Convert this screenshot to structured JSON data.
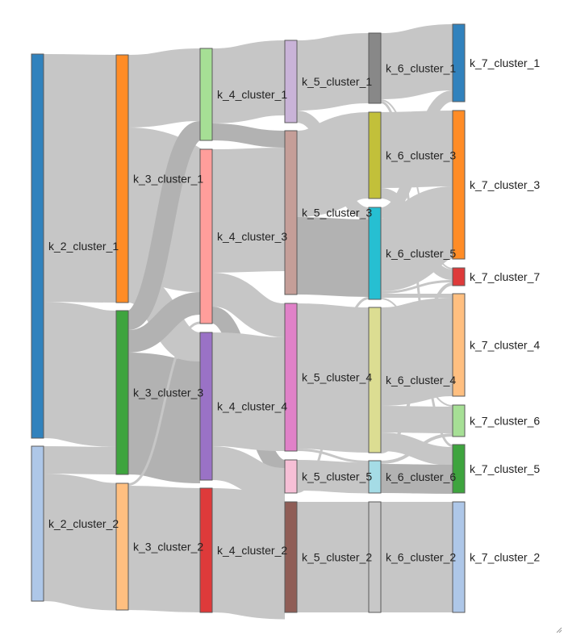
{
  "diagram": {
    "type": "sankey",
    "nodes": [
      {
        "id": "k_2_cluster_1",
        "label": "k_2_cluster_1",
        "color": "#3182bd"
      },
      {
        "id": "k_2_cluster_2",
        "label": "k_2_cluster_2",
        "color": "#aec7e8"
      },
      {
        "id": "k_3_cluster_1",
        "label": "k_3_cluster_1",
        "color": "#ff8c26"
      },
      {
        "id": "k_3_cluster_3",
        "label": "k_3_cluster_3",
        "color": "#3ea43e"
      },
      {
        "id": "k_3_cluster_2",
        "label": "k_3_cluster_2",
        "color": "#ffbf80"
      },
      {
        "id": "k_4_cluster_1",
        "label": "k_4_cluster_1",
        "color": "#a6df95"
      },
      {
        "id": "k_4_cluster_3",
        "label": "k_4_cluster_3",
        "color": "#ff9e9b"
      },
      {
        "id": "k_4_cluster_4",
        "label": "k_4_cluster_4",
        "color": "#9a72c6"
      },
      {
        "id": "k_4_cluster_2",
        "label": "k_4_cluster_2",
        "color": "#de3a3a"
      },
      {
        "id": "k_5_cluster_1",
        "label": "k_5_cluster_1",
        "color": "#c9b3d8"
      },
      {
        "id": "k_5_cluster_3",
        "label": "k_5_cluster_3",
        "color": "#c59e98"
      },
      {
        "id": "k_5_cluster_4",
        "label": "k_5_cluster_4",
        "color": "#e081c8"
      },
      {
        "id": "k_5_cluster_5",
        "label": "k_5_cluster_5",
        "color": "#f6bfd6"
      },
      {
        "id": "k_5_cluster_2",
        "label": "k_5_cluster_2",
        "color": "#8f5d56"
      },
      {
        "id": "k_6_cluster_1",
        "label": "k_6_cluster_1",
        "color": "#888888"
      },
      {
        "id": "k_6_cluster_3",
        "label": "k_6_cluster_3",
        "color": "#c2c03a"
      },
      {
        "id": "k_6_cluster_5",
        "label": "k_6_cluster_5",
        "color": "#26bfd2"
      },
      {
        "id": "k_6_cluster_4",
        "label": "k_6_cluster_4",
        "color": "#dcdd92"
      },
      {
        "id": "k_6_cluster_6",
        "label": "k_6_cluster_6",
        "color": "#a5dce6"
      },
      {
        "id": "k_6_cluster_2",
        "label": "k_6_cluster_2",
        "color": "#c8c8c8"
      },
      {
        "id": "k_7_cluster_1",
        "label": "k_7_cluster_1",
        "color": "#3182bd"
      },
      {
        "id": "k_7_cluster_3",
        "label": "k_7_cluster_3",
        "color": "#ff8c26"
      },
      {
        "id": "k_7_cluster_7",
        "label": "k_7_cluster_7",
        "color": "#de3a3a"
      },
      {
        "id": "k_7_cluster_4",
        "label": "k_7_cluster_4",
        "color": "#ffbf80"
      },
      {
        "id": "k_7_cluster_6",
        "label": "k_7_cluster_6",
        "color": "#a6df95"
      },
      {
        "id": "k_7_cluster_5",
        "label": "k_7_cluster_5",
        "color": "#3ea43e"
      },
      {
        "id": "k_7_cluster_2",
        "label": "k_7_cluster_2",
        "color": "#aec7e8"
      }
    ],
    "links": [
      {
        "source": "k_2_cluster_1",
        "target": "k_3_cluster_1"
      },
      {
        "source": "k_2_cluster_1",
        "target": "k_3_cluster_3"
      },
      {
        "source": "k_2_cluster_2",
        "target": "k_3_cluster_3"
      },
      {
        "source": "k_2_cluster_2",
        "target": "k_3_cluster_2"
      },
      {
        "source": "k_3_cluster_1",
        "target": "k_4_cluster_1"
      },
      {
        "source": "k_3_cluster_1",
        "target": "k_4_cluster_3"
      },
      {
        "source": "k_3_cluster_1",
        "target": "k_4_cluster_4"
      },
      {
        "source": "k_3_cluster_3",
        "target": "k_4_cluster_1"
      },
      {
        "source": "k_3_cluster_3",
        "target": "k_4_cluster_3"
      },
      {
        "source": "k_3_cluster_3",
        "target": "k_4_cluster_4"
      },
      {
        "source": "k_3_cluster_2",
        "target": "k_4_cluster_3"
      },
      {
        "source": "k_3_cluster_2",
        "target": "k_4_cluster_2"
      },
      {
        "source": "k_4_cluster_1",
        "target": "k_5_cluster_1"
      },
      {
        "source": "k_4_cluster_1",
        "target": "k_5_cluster_3"
      },
      {
        "source": "k_4_cluster_3",
        "target": "k_5_cluster_3"
      },
      {
        "source": "k_4_cluster_3",
        "target": "k_5_cluster_4"
      },
      {
        "source": "k_4_cluster_3",
        "target": "k_5_cluster_5"
      },
      {
        "source": "k_4_cluster_4",
        "target": "k_5_cluster_4"
      },
      {
        "source": "k_4_cluster_4",
        "target": "k_5_cluster_5"
      },
      {
        "source": "k_4_cluster_2",
        "target": "k_5_cluster_2"
      },
      {
        "source": "k_5_cluster_1",
        "target": "k_6_cluster_1"
      },
      {
        "source": "k_5_cluster_1",
        "target": "k_6_cluster_5"
      },
      {
        "source": "k_5_cluster_3",
        "target": "k_6_cluster_3"
      },
      {
        "source": "k_5_cluster_3",
        "target": "k_6_cluster_5"
      },
      {
        "source": "k_5_cluster_4",
        "target": "k_6_cluster_4"
      },
      {
        "source": "k_5_cluster_4",
        "target": "k_6_cluster_6"
      },
      {
        "source": "k_5_cluster_5",
        "target": "k_6_cluster_6"
      },
      {
        "source": "k_5_cluster_5",
        "target": "k_6_cluster_5"
      },
      {
        "source": "k_5_cluster_2",
        "target": "k_6_cluster_2"
      },
      {
        "source": "k_6_cluster_1",
        "target": "k_7_cluster_1"
      },
      {
        "source": "k_6_cluster_1",
        "target": "k_7_cluster_7"
      },
      {
        "source": "k_6_cluster_1",
        "target": "k_7_cluster_5"
      },
      {
        "source": "k_6_cluster_3",
        "target": "k_7_cluster_3"
      },
      {
        "source": "k_6_cluster_3",
        "target": "k_7_cluster_7"
      },
      {
        "source": "k_6_cluster_5",
        "target": "k_7_cluster_1"
      },
      {
        "source": "k_6_cluster_5",
        "target": "k_7_cluster_3"
      },
      {
        "source": "k_6_cluster_5",
        "target": "k_7_cluster_7"
      },
      {
        "source": "k_6_cluster_5",
        "target": "k_7_cluster_4"
      },
      {
        "source": "k_6_cluster_5",
        "target": "k_7_cluster_6"
      },
      {
        "source": "k_6_cluster_4",
        "target": "k_7_cluster_4"
      },
      {
        "source": "k_6_cluster_4",
        "target": "k_7_cluster_6"
      },
      {
        "source": "k_6_cluster_4",
        "target": "k_7_cluster_5"
      },
      {
        "source": "k_6_cluster_4",
        "target": "k_7_cluster_7"
      },
      {
        "source": "k_6_cluster_6",
        "target": "k_7_cluster_6"
      },
      {
        "source": "k_6_cluster_6",
        "target": "k_7_cluster_5"
      },
      {
        "source": "k_6_cluster_2",
        "target": "k_7_cluster_2"
      }
    ]
  },
  "colors": {
    "link": "#c6c6c6",
    "link_highlight": "#aaaaaa",
    "background": "#ffffff",
    "text": "#222222"
  }
}
